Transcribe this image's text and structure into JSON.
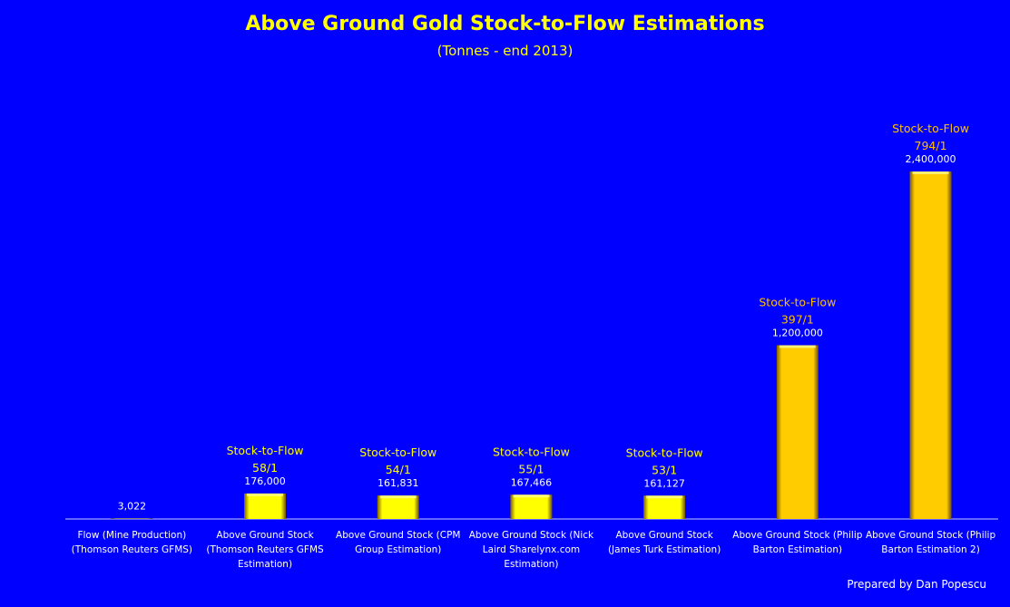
{
  "chart_data": {
    "type": "bar",
    "title": "Above Ground Gold Stock-to-Flow Estimations",
    "subtitle": "(Tonnes - end 2013)",
    "xlabel": "",
    "ylabel": "",
    "ylim": [
      0,
      2400000
    ],
    "grid": false,
    "categories": [
      "Flow (Mine Production) (Thomson Reuters GFMS)",
      "Above Ground Stock (Thomson Reuters GFMS Estimation)",
      "Above Ground Stock (CPM Group Estimation)",
      "Above Ground Stock (Nick Laird Sharelynx.com Estimation)",
      "Above Ground Stock (James Turk Estimation)",
      "Above Ground Stock (Philip Barton Estimation)",
      "Above Ground Stock (Philip Barton Estimation 2)"
    ],
    "values": [
      3022,
      176000,
      161831,
      167466,
      161127,
      1200000,
      2400000
    ],
    "value_labels": [
      "3,022",
      "176,000",
      "161,831",
      "167,466",
      "161,127",
      "1,200,000",
      "2,400,000"
    ],
    "annotations": [
      null,
      {
        "label": "Stock-to-Flow",
        "ratio": "58/1"
      },
      {
        "label": "Stock-to-Flow",
        "ratio": "54/1"
      },
      {
        "label": "Stock-to-Flow",
        "ratio": "55/1"
      },
      {
        "label": "Stock-to-Flow",
        "ratio": "53/1"
      },
      {
        "label": "Stock-to-Flow",
        "ratio": "397/1"
      },
      {
        "label": "Stock-to-Flow",
        "ratio": "794/1"
      }
    ],
    "bar_colors": [
      "#ffff00",
      "#ffff00",
      "#ffff00",
      "#ffff00",
      "#ffff00",
      "#ffcc00",
      "#ffcc00"
    ],
    "annotation_colors": [
      "#ffff00",
      "#ffff00",
      "#ffff00",
      "#ffff00",
      "#ffff00",
      "#ffc000",
      "#ffc000"
    ]
  },
  "credit": "Prepared by Dan Popescu",
  "colors": {
    "background": "#0000fe",
    "title": "#ffff00"
  }
}
